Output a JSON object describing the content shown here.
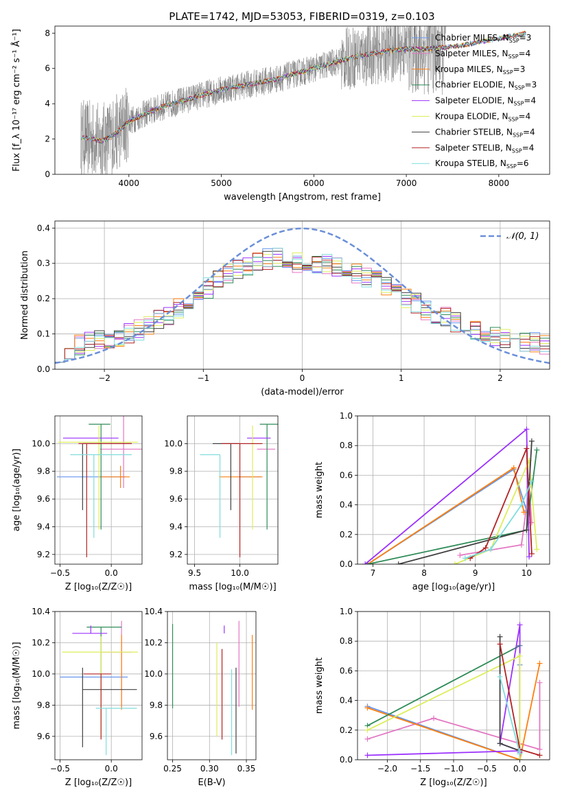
{
  "figure": {
    "title": "PLATE=1742, MJD=53053, FIBERID=0319, z=0.103"
  },
  "colors": [
    "#6495ED",
    "#E377C2",
    "#FF7F0E",
    "#2E8B57",
    "#9B30FF",
    "#DDED5A",
    "#404040",
    "#B22222",
    "#7FDCDC"
  ],
  "chart_data": [
    {
      "id": "spectrum",
      "type": "line",
      "title": "PLATE=1742, MJD=53053, FIBERID=0319, z=0.103",
      "xlabel": "wavelength [Angstrom, rest frame]",
      "ylabel": "Flux [f_λ 10⁻¹⁷ erg cm⁻² s⁻¹ Å⁻¹]",
      "xlim": [
        3200,
        8550
      ],
      "ylim": [
        0,
        8.4
      ],
      "xticks": [
        "4000",
        "5000",
        "6000",
        "7000",
        "8000"
      ],
      "yticks": [
        "0",
        "2",
        "4",
        "6",
        "8"
      ],
      "legend_position": "upper-right",
      "data_series": {
        "name": "data",
        "color": "#808080",
        "x_range": [
          3480,
          7430
        ],
        "continuum_x": [
          3480,
          3600,
          3700,
          3800,
          3900,
          4000,
          4200,
          4400,
          4600,
          4800,
          5000,
          5200,
          5400,
          5600,
          5800,
          6000,
          6200,
          6400,
          6600,
          6800,
          7000,
          7200,
          7400
        ],
        "continuum_y": [
          2.1,
          2.0,
          1.9,
          2.1,
          2.5,
          3.0,
          3.5,
          3.9,
          4.2,
          4.5,
          4.8,
          5.0,
          5.2,
          5.4,
          5.7,
          6.0,
          6.3,
          6.6,
          6.8,
          7.0,
          7.1,
          7.1,
          7.1
        ]
      },
      "model_x": [
        3480,
        3600,
        3700,
        3800,
        3900,
        4000,
        4200,
        4400,
        4600,
        4800,
        5000,
        5200,
        5400,
        5600,
        5800,
        6000,
        6200,
        6400,
        6600,
        6800,
        7000,
        7200,
        7400,
        7600,
        7800,
        8000,
        8200,
        8300
      ],
      "model_y": [
        2.1,
        2.0,
        1.9,
        2.1,
        2.5,
        3.0,
        3.5,
        3.9,
        4.2,
        4.5,
        4.8,
        5.0,
        5.2,
        5.4,
        5.7,
        6.0,
        6.3,
        6.6,
        6.8,
        7.0,
        7.1,
        7.1,
        7.2,
        7.3,
        7.5,
        7.7,
        7.9,
        8.0
      ],
      "series": [
        {
          "name": "Chabrier MILES, N",
          "sub": "SSP",
          "suffix": "=3",
          "color": "#6495ED"
        },
        {
          "name": "Salpeter MILES, N",
          "sub": "SSP",
          "suffix": "=4",
          "color": "#E377C2"
        },
        {
          "name": "Kroupa MILES, N",
          "sub": "SSP",
          "suffix": "=3",
          "color": "#FF7F0E"
        },
        {
          "name": "Chabrier ELODIE, N",
          "sub": "SSP",
          "suffix": "=3",
          "color": "#2E8B57"
        },
        {
          "name": "Salpeter ELODIE, N",
          "sub": "SSP",
          "suffix": "=4",
          "color": "#9B30FF"
        },
        {
          "name": "Kroupa ELODIE, N",
          "sub": "SSP",
          "suffix": "=4",
          "color": "#DDED5A"
        },
        {
          "name": "Chabrier STELIB, N",
          "sub": "SSP",
          "suffix": "=4",
          "color": "#404040"
        },
        {
          "name": "Salpeter STELIB, N",
          "sub": "SSP",
          "suffix": "=4",
          "color": "#B22222"
        },
        {
          "name": "Kroupa STELIB, N",
          "sub": "SSP",
          "suffix": "=6",
          "color": "#7FDCDC"
        }
      ]
    },
    {
      "id": "residuals",
      "type": "line",
      "xlabel": "(data-model)/error",
      "ylabel": "Normed distribution",
      "xlim": [
        -2.5,
        2.5
      ],
      "ylim": [
        0,
        0.42
      ],
      "xticks": [
        "−2",
        "−1",
        "0",
        "1",
        "2"
      ],
      "yticks": [
        "0.0",
        "0.1",
        "0.2",
        "0.3",
        "0.4"
      ],
      "grid": true,
      "legend": "𝒩(0, 1)",
      "legend_position": "upper-right",
      "gaussian": {
        "mean": 0,
        "sigma": 1,
        "color": "#6A8FD8",
        "dashed": true
      },
      "bin_width": 0.1,
      "histogram_shape": {
        "x": [
          -2.5,
          -2.25,
          -2.0,
          -1.75,
          -1.5,
          -1.25,
          -1.0,
          -0.75,
          -0.5,
          -0.25,
          0.0,
          0.25,
          0.5,
          0.75,
          1.0,
          1.25,
          1.5,
          1.75,
          2.0,
          2.25,
          2.5
        ],
        "y": [
          0.04,
          0.07,
          0.085,
          0.1,
          0.13,
          0.17,
          0.22,
          0.27,
          0.3,
          0.32,
          0.3,
          0.3,
          0.28,
          0.25,
          0.21,
          0.17,
          0.14,
          0.11,
          0.09,
          0.08,
          0.065
        ]
      }
    },
    {
      "id": "age-vs-Z",
      "type": "scatter",
      "xlabel": "Z [log₁₀(Z/Z☉)]",
      "ylabel": "age  [log₁₀(age/yr)]",
      "xlim": [
        -0.55,
        0.3
      ],
      "ylim": [
        9.13,
        10.2
      ],
      "xticks": [
        "−0.5",
        "0.0"
      ],
      "yticks": [
        "9.2",
        "9.4",
        "9.6",
        "9.8",
        "10.0"
      ],
      "grid": true,
      "points": [
        {
          "x": -0.13,
          "y": 9.76,
          "xerr": [
            0.4,
            0.27
          ],
          "yerr": [
            0.0,
            0.0
          ],
          "color": "#6495ED"
        },
        {
          "x": 0.12,
          "y": 9.96,
          "xerr": [
            0.23,
            0.27
          ],
          "yerr": [
            0.28,
            0.24
          ],
          "color": "#E377C2"
        },
        {
          "x": 0.09,
          "y": 9.76,
          "xerr": [
            0.2,
            0.09
          ],
          "yerr": [
            0.08,
            0.08
          ],
          "color": "#FF7F0E"
        },
        {
          "x": -0.1,
          "y": 10.14,
          "xerr": [
            0.12,
            0.09
          ],
          "yerr": [
            0.76,
            0.0
          ],
          "color": "#2E8B57"
        },
        {
          "x": -0.25,
          "y": 10.04,
          "xerr": [
            0.22,
            0.32
          ],
          "yerr": [
            0.0,
            0.0
          ],
          "color": "#9B30FF"
        },
        {
          "x": -0.12,
          "y": 10.01,
          "xerr": [
            0.4,
            0.38
          ],
          "yerr": [
            0.63,
            0.12
          ],
          "color": "#DDED5A"
        },
        {
          "x": -0.28,
          "y": 10.0,
          "xerr": [
            0.0,
            0.48
          ],
          "yerr": [
            0.48,
            0.0
          ],
          "color": "#404040"
        },
        {
          "x": -0.24,
          "y": 10.0,
          "xerr": [
            0.08,
            0.44
          ],
          "yerr": [
            0.82,
            0.0
          ],
          "color": "#B22222"
        },
        {
          "x": -0.17,
          "y": 9.92,
          "xerr": [
            0.23,
            0.37
          ],
          "yerr": [
            0.6,
            0.0
          ],
          "color": "#7FDCDC"
        }
      ]
    },
    {
      "id": "age-vs-mass",
      "type": "scatter",
      "xlabel": "mass [log₁₀(M/M☉)]",
      "ylabel": "",
      "xlim": [
        9.42,
        10.42
      ],
      "ylim": [
        9.13,
        10.2
      ],
      "xticks": [
        "9.5",
        "10.0"
      ],
      "yticks": [
        "9.2",
        "9.4",
        "9.6",
        "9.8",
        "10.0"
      ],
      "grid": true,
      "points": [
        {
          "x": 9.98,
          "y": 9.76,
          "xerr": [
            0.0,
            0.25
          ],
          "yerr": [
            0.0,
            0.0
          ],
          "color": "#6495ED"
        },
        {
          "x": 10.27,
          "y": 9.96,
          "xerr": [
            0.08,
            0.12
          ],
          "yerr": [
            0.0,
            0.0
          ],
          "color": "#E377C2"
        },
        {
          "x": 10.0,
          "y": 9.76,
          "xerr": [
            0.23,
            0.25
          ],
          "yerr": [
            0.0,
            0.0
          ],
          "color": "#FF7F0E"
        },
        {
          "x": 10.3,
          "y": 10.14,
          "xerr": [
            0.08,
            0.12
          ],
          "yerr": [
            0.76,
            0.0
          ],
          "color": "#2E8B57"
        },
        {
          "x": 10.24,
          "y": 10.04,
          "xerr": [
            0.16,
            0.1
          ],
          "yerr": [
            0.0,
            0.0
          ],
          "color": "#9B30FF"
        },
        {
          "x": 10.14,
          "y": 10.01,
          "xerr": [
            0.0,
            0.0
          ],
          "yerr": [
            0.63,
            0.12
          ],
          "color": "#DDED5A"
        },
        {
          "x": 9.9,
          "y": 10.0,
          "xerr": [
            0.2,
            0.1
          ],
          "yerr": [
            0.48,
            0.0
          ],
          "color": "#404040"
        },
        {
          "x": 10.0,
          "y": 10.0,
          "xerr": [
            0.2,
            0.25
          ],
          "yerr": [
            0.82,
            0.0
          ],
          "color": "#B22222"
        },
        {
          "x": 9.78,
          "y": 9.92,
          "xerr": [
            0.22,
            0.0
          ],
          "yerr": [
            0.6,
            0.0
          ],
          "color": "#7FDCDC"
        }
      ]
    },
    {
      "id": "weight-vs-age",
      "type": "line",
      "xlabel": "age  [log₁₀(age/yr)]",
      "ylabel": "mass weight",
      "xlim": [
        6.7,
        10.45
      ],
      "ylim": [
        0,
        1.0
      ],
      "xticks": [
        "7",
        "8",
        "9",
        "10"
      ],
      "yticks": [
        "0.0",
        "0.2",
        "0.4",
        "0.6",
        "0.8",
        "1.0"
      ],
      "grid": true,
      "series": [
        {
          "color": "#6495ED",
          "x": [
            6.9,
            9.75,
            10.0
          ],
          "y": [
            0.0,
            0.64,
            0.36
          ]
        },
        {
          "color": "#E377C2",
          "x": [
            8.7,
            9.9,
            10.05,
            10.1
          ],
          "y": [
            0.06,
            0.13,
            0.52,
            0.28
          ]
        },
        {
          "color": "#FF7F0E",
          "x": [
            6.9,
            9.75,
            9.95
          ],
          "y": [
            0.0,
            0.65,
            0.35
          ]
        },
        {
          "color": "#2E8B57",
          "x": [
            6.9,
            10.0,
            10.2
          ],
          "y": [
            0.0,
            0.23,
            0.77
          ]
        },
        {
          "color": "#9B30FF",
          "x": [
            6.85,
            10.0,
            10.05
          ],
          "y": [
            0.0,
            0.91,
            0.05
          ]
        },
        {
          "color": "#DDED5A",
          "x": [
            8.6,
            9.3,
            10.05,
            10.2
          ],
          "y": [
            0.0,
            0.1,
            0.7,
            0.1
          ]
        },
        {
          "color": "#404040",
          "x": [
            7.5,
            10.0,
            10.1
          ],
          "y": [
            0.0,
            0.23,
            0.83
          ]
        },
        {
          "color": "#B22222",
          "x": [
            8.9,
            9.2,
            10.0,
            10.1
          ],
          "y": [
            0.04,
            0.11,
            0.78,
            0.07
          ]
        },
        {
          "color": "#7FDCDC",
          "x": [
            8.8,
            9.3,
            9.9,
            10.1
          ],
          "y": [
            0.04,
            0.1,
            0.4,
            0.56
          ]
        }
      ]
    },
    {
      "id": "mass-vs-Z",
      "type": "scatter",
      "xlabel": "Z [log₁₀(Z/Z☉)]",
      "ylabel": "mass [log₁₀(M/M☉)]",
      "xlim": [
        -0.55,
        0.3
      ],
      "ylim": [
        9.45,
        10.4
      ],
      "xticks": [
        "−0.5",
        "0.0"
      ],
      "yticks": [
        "9.6",
        "9.8",
        "10.0",
        "10.2",
        "10.4"
      ],
      "grid": true,
      "points": [
        {
          "x": -0.17,
          "y": 9.98,
          "xerr": [
            0.33,
            0.33
          ],
          "yerr": [
            0.0,
            0.0
          ],
          "color": "#6495ED"
        },
        {
          "x": 0.1,
          "y": 10.14,
          "xerr": [
            0.2,
            0.1
          ],
          "yerr": [
            0.35,
            0.2
          ],
          "color": "#E377C2"
        },
        {
          "x": 0.1,
          "y": 10.0,
          "xerr": [
            0.0,
            0.0
          ],
          "yerr": [
            0.23,
            0.25
          ],
          "color": "#FF7F0E"
        },
        {
          "x": -0.1,
          "y": 10.3,
          "xerr": [
            0.14,
            0.2
          ],
          "yerr": [
            0.3,
            0.0
          ],
          "color": "#2E8B57"
        },
        {
          "x": -0.2,
          "y": 10.26,
          "xerr": [
            0.18,
            0.16
          ],
          "yerr": [
            0.0,
            0.05
          ],
          "color": "#9B30FF"
        },
        {
          "x": -0.1,
          "y": 10.14,
          "xerr": [
            0.38,
            0.36
          ],
          "yerr": [
            0.54,
            0.1
          ],
          "color": "#DDED5A"
        },
        {
          "x": -0.28,
          "y": 9.9,
          "xerr": [
            0.0,
            0.53
          ],
          "yerr": [
            0.37,
            0.14
          ],
          "color": "#404040"
        },
        {
          "x": -0.1,
          "y": 10.0,
          "xerr": [
            0.17,
            0.1
          ],
          "yerr": [
            0.42,
            0.0
          ],
          "color": "#B22222"
        },
        {
          "x": -0.05,
          "y": 9.78,
          "xerr": [
            0.1,
            0.3
          ],
          "yerr": [
            0.3,
            0.0
          ],
          "color": "#7FDCDC"
        }
      ]
    },
    {
      "id": "mass-vs-ebv",
      "type": "scatter",
      "xlabel": "E(B-V)",
      "ylabel": "",
      "xlim": [
        0.243,
        0.363
      ],
      "ylim": [
        9.45,
        10.4
      ],
      "xticks": [
        "0.25",
        "0.30",
        "0.35"
      ],
      "yticks": [
        "9.6",
        "9.8",
        "10.0",
        "10.2",
        "10.4"
      ],
      "grid": true,
      "points": [
        {
          "x": 0.25,
          "y": 9.98,
          "yerr": [
            0.0,
            0.0
          ],
          "color": "#6495ED"
        },
        {
          "x": 0.34,
          "y": 10.14,
          "yerr": [
            0.35,
            0.2
          ],
          "color": "#E377C2"
        },
        {
          "x": 0.358,
          "y": 10.0,
          "yerr": [
            0.23,
            0.25
          ],
          "color": "#FF7F0E"
        },
        {
          "x": 0.25,
          "y": 10.3,
          "yerr": [
            0.52,
            0.02
          ],
          "color": "#2E8B57"
        },
        {
          "x": 0.32,
          "y": 10.26,
          "yerr": [
            0.0,
            0.05
          ],
          "color": "#9B30FF"
        },
        {
          "x": 0.31,
          "y": 10.14,
          "yerr": [
            0.54,
            0.06
          ],
          "color": "#DDED5A"
        },
        {
          "x": 0.336,
          "y": 9.9,
          "yerr": [
            0.41,
            0.14
          ],
          "color": "#404040"
        },
        {
          "x": 0.317,
          "y": 10.0,
          "yerr": [
            0.42,
            0.16
          ],
          "color": "#B22222"
        },
        {
          "x": 0.33,
          "y": 9.78,
          "yerr": [
            0.3,
            0.25
          ],
          "color": "#7FDCDC"
        }
      ]
    },
    {
      "id": "weight-vs-Z",
      "type": "line",
      "xlabel": "Z [log₁₀(Z/Z☉)]",
      "ylabel": "mass weight",
      "xlim": [
        -2.45,
        0.45
      ],
      "ylim": [
        0,
        1.0
      ],
      "xticks": [
        "−2.0",
        "−1.5",
        "−1.0",
        "−0.5",
        "0.0"
      ],
      "yticks": [
        "0.0",
        "0.2",
        "0.4",
        "0.6",
        "0.8",
        "1.0"
      ],
      "grid": true,
      "series": [
        {
          "color": "#6495ED",
          "x": [
            -2.3,
            0.0,
            0.0
          ],
          "y": [
            0.36,
            0.0,
            0.64
          ]
        },
        {
          "color": "#E377C2",
          "x": [
            -2.3,
            -1.3,
            0.3,
            0.3
          ],
          "y": [
            0.14,
            0.28,
            0.07,
            0.52
          ]
        },
        {
          "color": "#FF7F0E",
          "x": [
            -2.3,
            0.0,
            0.3
          ],
          "y": [
            0.35,
            0.0,
            0.65
          ]
        },
        {
          "color": "#2E8B57",
          "x": [
            -2.3,
            0.0,
            0.0
          ],
          "y": [
            0.23,
            0.77,
            0.0
          ]
        },
        {
          "color": "#9B30FF",
          "x": [
            -2.3,
            0.0,
            -0.3,
            0.0,
            0.0
          ],
          "y": [
            0.03,
            0.06,
            0.11,
            0.91,
            0.05
          ]
        },
        {
          "color": "#DDED5A",
          "x": [
            -2.3,
            0.0,
            0.0,
            0.0
          ],
          "y": [
            0.2,
            0.7,
            0.1,
            0.0
          ]
        },
        {
          "color": "#404040",
          "x": [
            -0.3,
            -0.3,
            0.0
          ],
          "y": [
            0.83,
            0.11,
            0.06
          ]
        },
        {
          "color": "#B22222",
          "x": [
            -0.3,
            0.0,
            0.3
          ],
          "y": [
            0.78,
            0.07,
            0.03
          ]
        },
        {
          "color": "#7FDCDC",
          "x": [
            -0.3,
            0.0,
            0.0
          ],
          "y": [
            0.56,
            0.04,
            0.06
          ]
        }
      ]
    }
  ]
}
